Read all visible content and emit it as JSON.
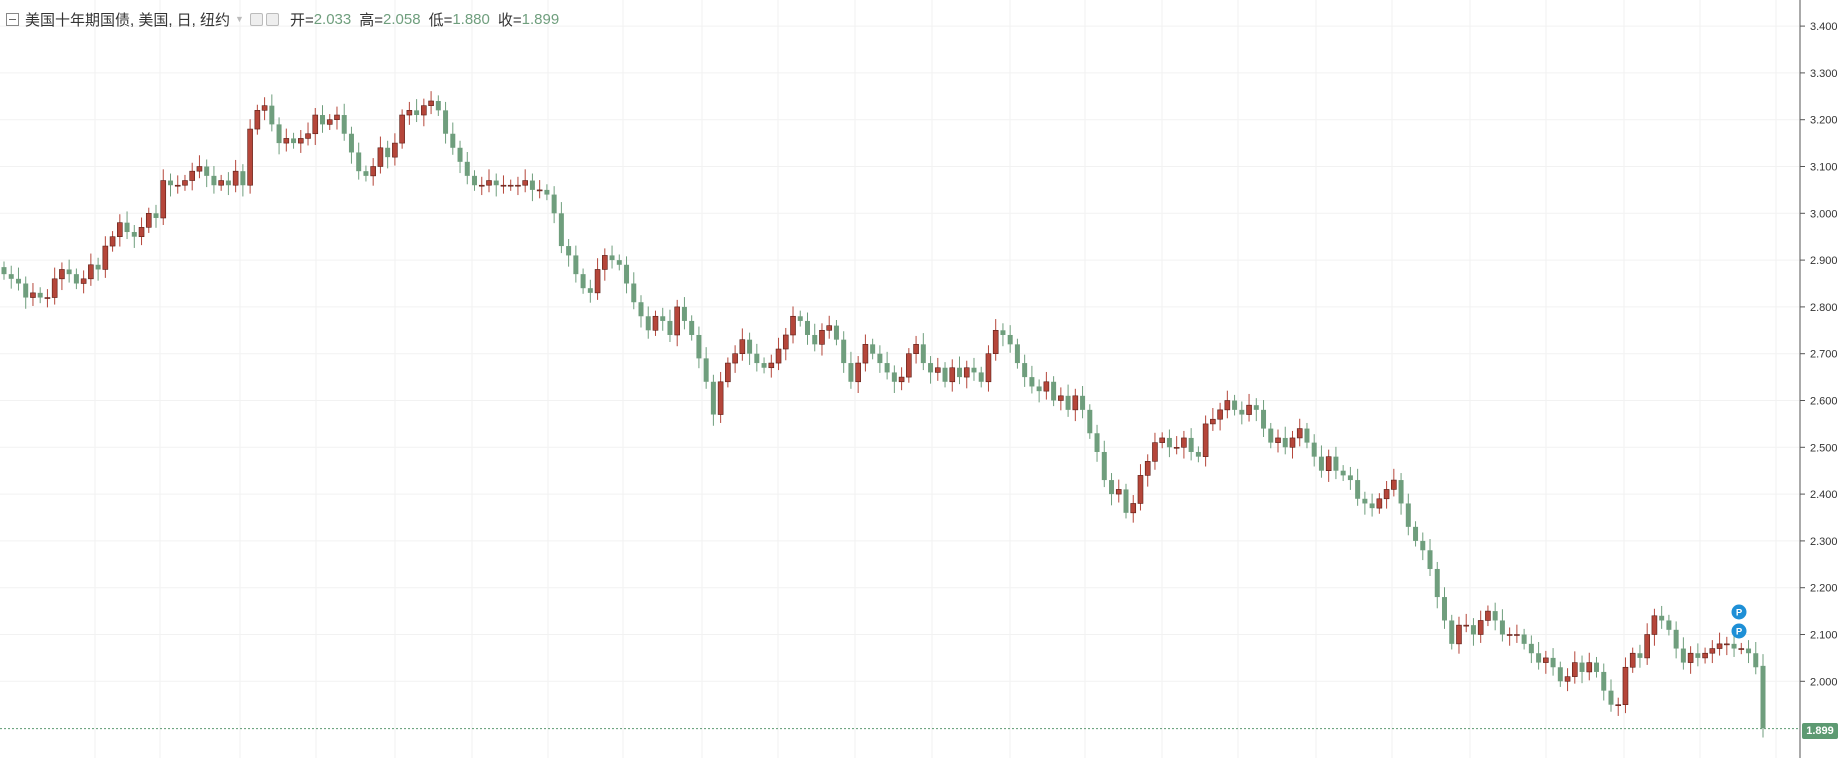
{
  "header": {
    "symbol": "美国十年期国债, 美国, 日, 纽约",
    "open_label": "开=",
    "open": "2.033",
    "high_label": "高=",
    "high": "2.058",
    "low_label": "低=",
    "low": "1.880",
    "close_label": "收=",
    "close": "1.899"
  },
  "last_price_label": "1.899",
  "markers": [
    "P",
    "P"
  ],
  "colors": {
    "up": "#b5463a",
    "down": "#6f9e7d",
    "grid": "#f2f2f2",
    "axis": "#555555",
    "last_price": "#5d9a72",
    "marker": "#1e8fd6"
  },
  "chart_data": {
    "type": "candlestick",
    "ylim": [
      1.85,
      3.45
    ],
    "y_ticks": [
      3.4,
      3.3,
      3.2,
      3.1,
      3.0,
      2.9,
      2.8,
      2.7,
      2.6,
      2.5,
      2.4,
      2.3,
      2.2,
      2.1,
      2.0
    ],
    "y_tick_labels": [
      "3.400",
      "3.300",
      "3.200",
      "3.100",
      "3.000",
      "2.900",
      "2.800",
      "2.700",
      "2.600",
      "2.500",
      "2.400",
      "2.300",
      "2.200",
      "2.100",
      "2.000"
    ],
    "last_price": 1.899,
    "closes": [
      2.87,
      2.86,
      2.85,
      2.82,
      2.83,
      2.82,
      2.82,
      2.86,
      2.88,
      2.87,
      2.85,
      2.86,
      2.89,
      2.88,
      2.93,
      2.95,
      2.98,
      2.96,
      2.95,
      2.97,
      3.0,
      2.99,
      3.07,
      3.06,
      3.06,
      3.07,
      3.09,
      3.1,
      3.08,
      3.06,
      3.07,
      3.06,
      3.09,
      3.06,
      3.18,
      3.22,
      3.23,
      3.19,
      3.15,
      3.16,
      3.15,
      3.16,
      3.17,
      3.21,
      3.19,
      3.2,
      3.21,
      3.17,
      3.13,
      3.09,
      3.08,
      3.1,
      3.14,
      3.12,
      3.15,
      3.21,
      3.22,
      3.21,
      3.23,
      3.24,
      3.22,
      3.17,
      3.14,
      3.11,
      3.08,
      3.06,
      3.06,
      3.07,
      3.06,
      3.06,
      3.06,
      3.06,
      3.07,
      3.05,
      3.05,
      3.04,
      3.0,
      2.93,
      2.91,
      2.87,
      2.84,
      2.83,
      2.88,
      2.91,
      2.9,
      2.89,
      2.85,
      2.81,
      2.78,
      2.75,
      2.78,
      2.77,
      2.74,
      2.8,
      2.77,
      2.74,
      2.69,
      2.64,
      2.57,
      2.64,
      2.68,
      2.7,
      2.73,
      2.7,
      2.68,
      2.67,
      2.68,
      2.71,
      2.74,
      2.78,
      2.77,
      2.74,
      2.72,
      2.75,
      2.76,
      2.73,
      2.68,
      2.64,
      2.68,
      2.72,
      2.7,
      2.68,
      2.66,
      2.64,
      2.65,
      2.7,
      2.72,
      2.68,
      2.66,
      2.67,
      2.64,
      2.67,
      2.65,
      2.67,
      2.66,
      2.64,
      2.7,
      2.75,
      2.74,
      2.72,
      2.68,
      2.65,
      2.63,
      2.62,
      2.64,
      2.6,
      2.61,
      2.58,
      2.61,
      2.58,
      2.53,
      2.49,
      2.43,
      2.4,
      2.41,
      2.36,
      2.38,
      2.44,
      2.47,
      2.51,
      2.52,
      2.5,
      2.5,
      2.52,
      2.49,
      2.48,
      2.55,
      2.56,
      2.58,
      2.6,
      2.58,
      2.57,
      2.59,
      2.58,
      2.54,
      2.51,
      2.52,
      2.5,
      2.52,
      2.54,
      2.51,
      2.48,
      2.45,
      2.48,
      2.45,
      2.44,
      2.43,
      2.39,
      2.38,
      2.37,
      2.39,
      2.41,
      2.43,
      2.38,
      2.33,
      2.3,
      2.28,
      2.24,
      2.18,
      2.13,
      2.08,
      2.12,
      2.12,
      2.1,
      2.13,
      2.15,
      2.13,
      2.1,
      2.1,
      2.1,
      2.08,
      2.06,
      2.04,
      2.05,
      2.03,
      2.0,
      2.01,
      2.04,
      2.02,
      2.04,
      2.02,
      1.98,
      1.95,
      1.95,
      2.03,
      2.06,
      2.05,
      2.1,
      2.14,
      2.13,
      2.11,
      2.07,
      2.04,
      2.06,
      2.05,
      2.06,
      2.07,
      2.08,
      2.08,
      2.07,
      2.07,
      2.06,
      2.03,
      1.9
    ]
  }
}
